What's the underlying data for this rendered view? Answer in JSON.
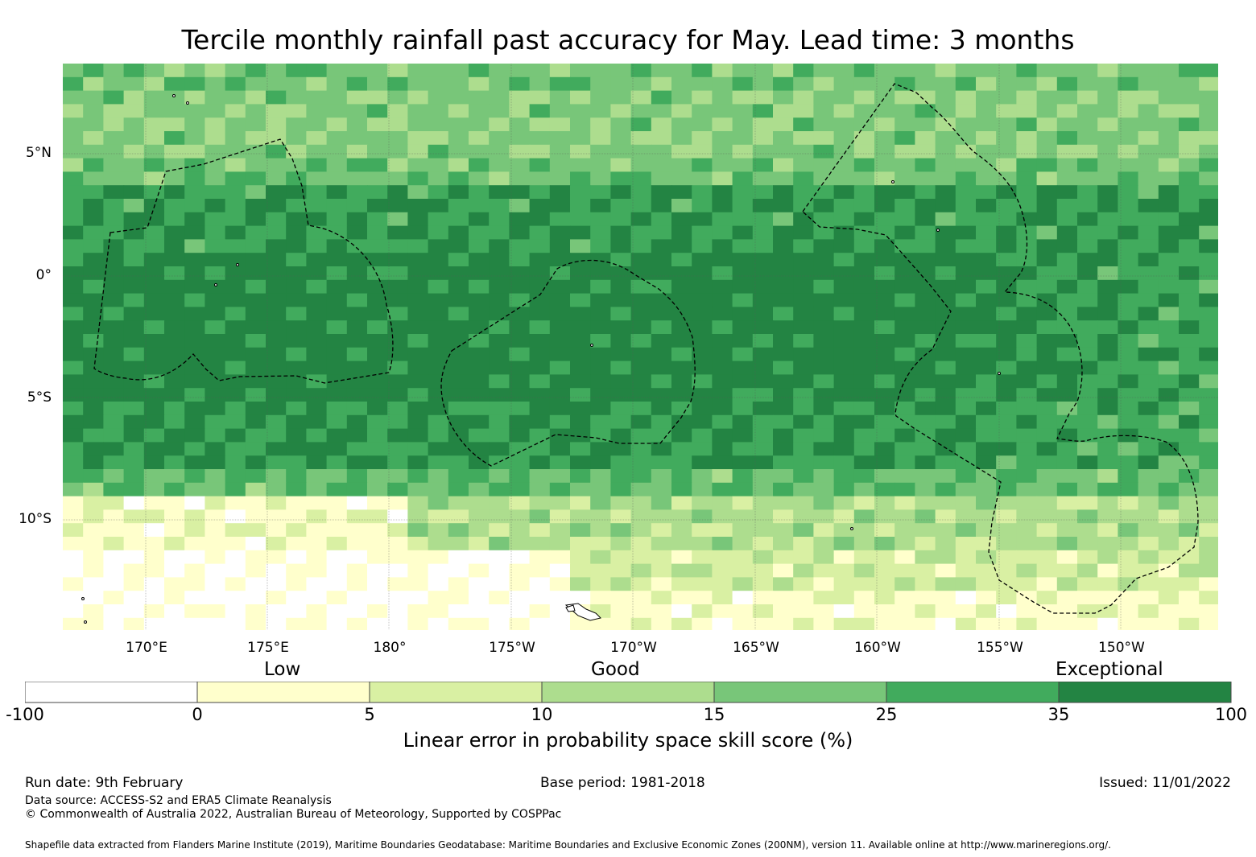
{
  "title": "Tercile monthly rainfall past accuracy for May. Lead time: 3 months",
  "map": {
    "longitude_labels": [
      "170°E",
      "175°E",
      "180°",
      "175°W",
      "170°W",
      "165°W",
      "160°W",
      "155°W",
      "150°W"
    ],
    "latitude_labels": [
      "5°N",
      "0°",
      "5°S",
      "10°S"
    ]
  },
  "colorbar": {
    "category_labels": [
      "Low",
      "Good",
      "Exceptional"
    ],
    "tick_labels": [
      "-100",
      "0",
      "5",
      "10",
      "15",
      "25",
      "35",
      "100"
    ],
    "colors": [
      "#ffffff",
      "#ffffcc",
      "#d9f0a3",
      "#addd8e",
      "#78c679",
      "#41ab5d",
      "#238443"
    ],
    "label": "Linear error in probability space skill score (%)"
  },
  "footer": {
    "run_date": "Run date: 9th February",
    "base_period": "Base period: 1981-2018",
    "issued": "Issued: 11/01/2022",
    "data_source": "Data source: ACCESS-S2 and ERA5 Climate Reanalysis",
    "copyright": "© Commonwealth of Australia 2022, Australian Bureau of Meteorology, Supported by COSPPac",
    "shapefile": "Shapefile data extracted from Flanders Marine Institute (2019), Maritime Boundaries Geodatabase: Maritime Boundaries and Exclusive Economic Zones (200NM), version 11. Available online at http://www.marineregions.org/."
  }
}
